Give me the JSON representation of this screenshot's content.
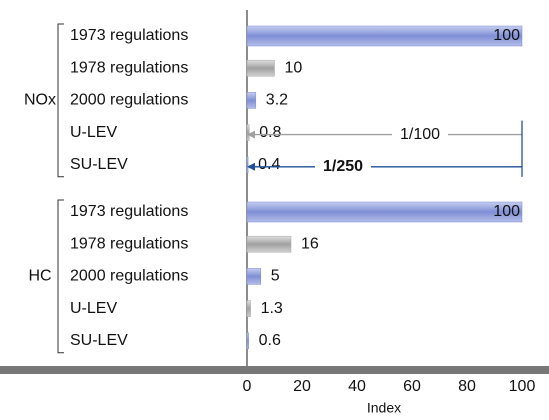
{
  "chart_data": {
    "type": "bar",
    "groups": [
      {
        "name": "NOx",
        "categories": [
          "1973 regulations",
          "1978 regulations",
          "2000 regulations",
          "U-LEV",
          "SU-LEV"
        ],
        "values": [
          100,
          10,
          3.2,
          0.8,
          0.4
        ],
        "colors": [
          "#7f8fd6",
          "#a8a8a8",
          "#7f8fd6",
          "#a8a8a8",
          "#7f8fd6"
        ],
        "label_colors": [
          "#2a5caa",
          "#333333",
          "#2a5caa",
          "#333333",
          "#2a5caa"
        ]
      },
      {
        "name": "HC",
        "categories": [
          "1973 regulations",
          "1978 regulations",
          "2000 regulations",
          "U-LEV",
          "SU-LEV"
        ],
        "values": [
          100,
          16,
          5,
          1.3,
          0.6
        ],
        "colors": [
          "#7f8fd6",
          "#a8a8a8",
          "#7f8fd6",
          "#a8a8a8",
          "#7f8fd6"
        ],
        "label_colors": [
          "#2a5caa",
          "#333333",
          "#2a5caa",
          "#333333",
          "#2a5caa"
        ]
      }
    ],
    "annotations": [
      {
        "text": "1/100",
        "color": "#a0a0a0"
      },
      {
        "text": "1/250",
        "color": "#1f4f9a"
      }
    ],
    "xlabel": "Index",
    "xlim": [
      0,
      100
    ],
    "xticks": [
      0,
      20,
      40,
      60,
      80,
      100
    ]
  }
}
